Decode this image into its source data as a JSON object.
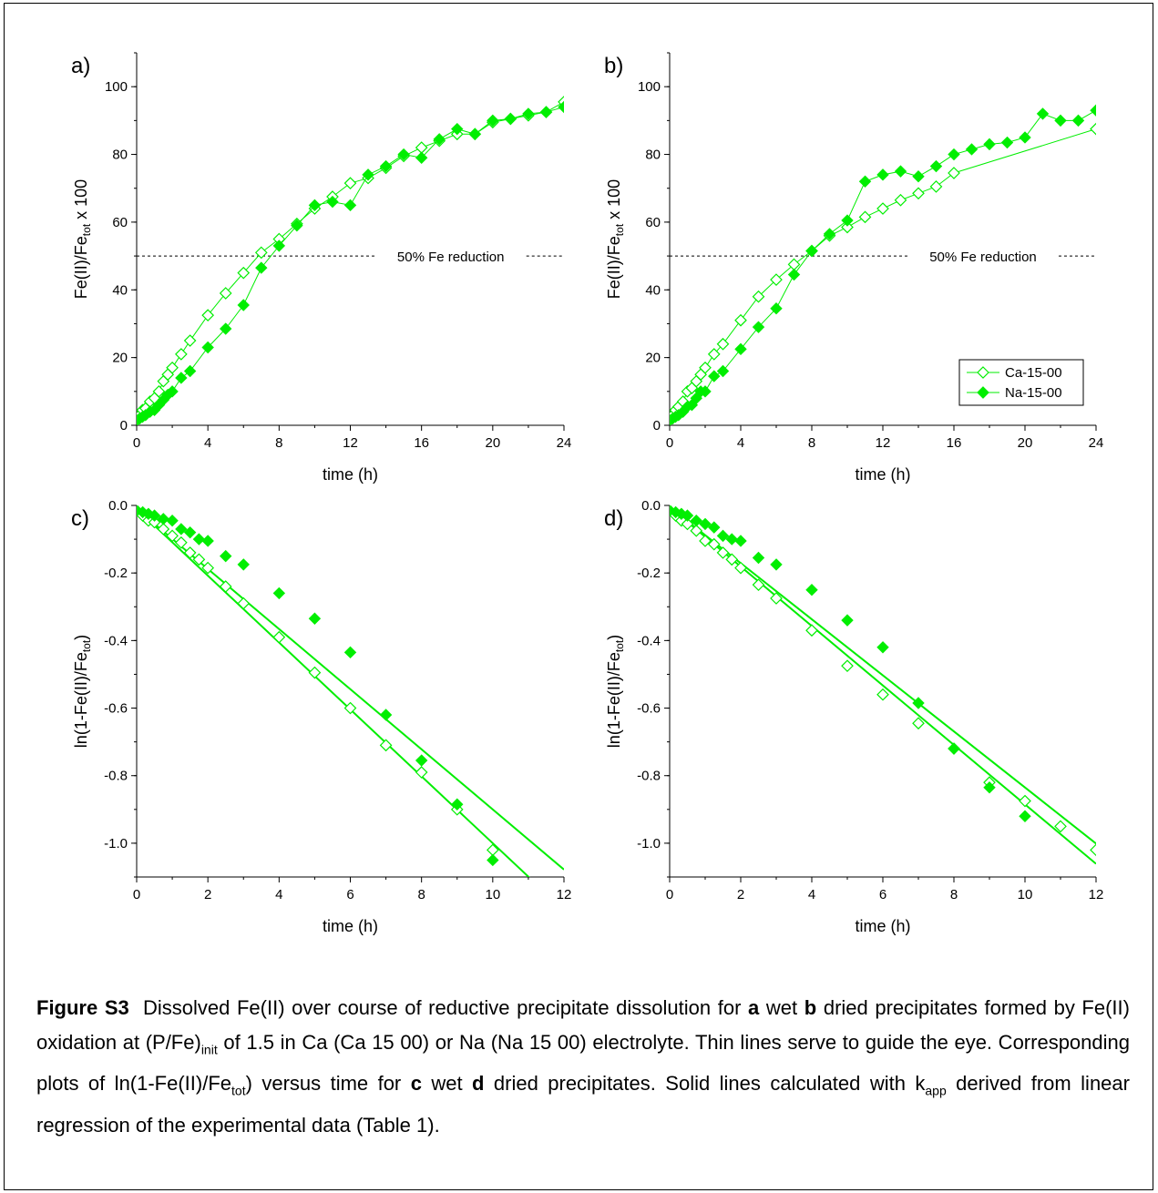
{
  "colors": {
    "series": "#00ee00",
    "axis": "#000000"
  },
  "panels": [
    {
      "label": "a)",
      "type": "line",
      "xlabel": "time (h)",
      "ylabel_html": "Fe(II)/Fe<tspan font-size=\"12\" dy=\"4\">tot</tspan><tspan dy=\"-4\"> x 100</tspan>",
      "xlim": [
        0,
        24
      ],
      "ylim": [
        0,
        110
      ],
      "xticks": [
        0,
        4,
        8,
        12,
        16,
        20,
        24
      ],
      "yticks": [
        0,
        20,
        40,
        60,
        80,
        100
      ],
      "hline": {
        "y": 50,
        "text": "50% Fe reduction"
      },
      "legend": false,
      "series": [
        {
          "name": "Ca-15-00",
          "marker": "open-diamond",
          "x": [
            0,
            0.17,
            0.33,
            0.5,
            0.75,
            1,
            1.25,
            1.5,
            1.75,
            2,
            2.5,
            3,
            4,
            5,
            6,
            7,
            8,
            9,
            10,
            11,
            12,
            13,
            14,
            15,
            16,
            17,
            18,
            19,
            20,
            21,
            22,
            23,
            24
          ],
          "y": [
            1.5,
            3,
            4.5,
            5,
            7,
            8,
            10,
            13,
            15,
            17,
            21,
            25,
            32.5,
            39,
            45,
            51,
            55,
            59.5,
            64,
            67.5,
            71.5,
            73,
            76,
            79.5,
            82,
            84,
            86,
            86,
            89.5,
            90.5,
            91.5,
            92.5,
            95.5
          ]
        },
        {
          "name": "Na-15-00",
          "marker": "filled-diamond",
          "x": [
            0,
            0.17,
            0.33,
            0.5,
            0.75,
            1,
            1.25,
            1.5,
            1.75,
            2,
            2.5,
            3,
            4,
            5,
            6,
            7,
            8,
            9,
            10,
            11,
            12,
            13,
            14,
            15,
            16,
            17,
            18,
            19,
            20,
            21,
            22,
            23,
            24
          ],
          "y": [
            1.5,
            2,
            2.5,
            3,
            4,
            4.5,
            6,
            7.5,
            9,
            10,
            14,
            16,
            23,
            28.5,
            35.5,
            46.5,
            53,
            59,
            65,
            66,
            65,
            74,
            76.5,
            80,
            79,
            84.5,
            87.5,
            86,
            90,
            90.5,
            92,
            92.5,
            94
          ]
        }
      ]
    },
    {
      "label": "b)",
      "type": "line",
      "xlabel": "time (h)",
      "ylabel_html": "Fe(II)/Fe<tspan font-size=\"12\" dy=\"4\">tot</tspan><tspan dy=\"-4\"> x 100</tspan>",
      "xlim": [
        0,
        24
      ],
      "ylim": [
        0,
        110
      ],
      "xticks": [
        0,
        4,
        8,
        12,
        16,
        20,
        24
      ],
      "yticks": [
        0,
        20,
        40,
        60,
        80,
        100
      ],
      "hline": {
        "y": 50,
        "text": "50% Fe reduction"
      },
      "legend": true,
      "series": [
        {
          "name": "Ca-15-00",
          "marker": "open-diamond",
          "x": [
            0,
            0.17,
            0.33,
            0.5,
            0.75,
            1,
            1.25,
            1.5,
            1.75,
            2,
            2.5,
            3,
            4,
            5,
            6,
            7,
            8,
            9,
            10,
            11,
            12,
            13,
            14,
            15,
            16,
            24
          ],
          "y": [
            1.5,
            3,
            4.5,
            5.5,
            7,
            10,
            11,
            13,
            15,
            17,
            21,
            24,
            31,
            38,
            43,
            47.5,
            51.5,
            56,
            58.5,
            61.5,
            64,
            66.5,
            68.5,
            70.5,
            74.5,
            87.5
          ]
        },
        {
          "name": "Na-15-00",
          "marker": "filled-diamond",
          "x": [
            0,
            0.17,
            0.33,
            0.5,
            0.75,
            1,
            1.25,
            1.5,
            1.75,
            2,
            2.5,
            3,
            4,
            5,
            6,
            7,
            8,
            9,
            10,
            11,
            12,
            13,
            14,
            15,
            16,
            17,
            18,
            19,
            20,
            21,
            22,
            23,
            24
          ],
          "y": [
            1.5,
            2,
            2.5,
            3,
            4,
            5.5,
            6,
            8,
            10,
            10,
            14.5,
            16,
            22.5,
            29,
            34.5,
            44.5,
            51.5,
            56.5,
            60.5,
            72,
            74,
            75,
            73.5,
            76.5,
            80,
            81.5,
            83,
            83.5,
            85,
            92,
            90,
            90,
            93
          ]
        }
      ]
    },
    {
      "label": "c)",
      "type": "scatter",
      "xlabel": "time (h)",
      "ylabel_html": "ln(1-Fe(II)/Fe<tspan font-size=\"12\" dy=\"4\">tot</tspan><tspan dy=\"-4\">)</tspan>",
      "xlim": [
        0,
        12
      ],
      "ylim": [
        -1.1,
        0
      ],
      "xticks": [
        0,
        2,
        4,
        6,
        8,
        10,
        12
      ],
      "yticks": [
        0,
        -0.2,
        -0.4,
        -0.6,
        -0.8,
        -1.0
      ],
      "ytick_labels": [
        "0.0",
        "-0.2",
        "-0.4",
        "-0.6",
        "-0.8",
        "-1.0"
      ],
      "legend": false,
      "fits": [
        {
          "slope": -0.099,
          "intercept": -0.01
        },
        {
          "slope": -0.089,
          "intercept": -0.01
        }
      ],
      "series": [
        {
          "name": "Ca-15-00",
          "marker": "open-diamond",
          "x": [
            0,
            0.17,
            0.33,
            0.5,
            0.75,
            1,
            1.25,
            1.5,
            1.75,
            2,
            2.5,
            3,
            4,
            5,
            6,
            7,
            8,
            9,
            10
          ],
          "y": [
            -0.015,
            -0.03,
            -0.045,
            -0.05,
            -0.07,
            -0.09,
            -0.11,
            -0.14,
            -0.16,
            -0.185,
            -0.24,
            -0.29,
            -0.39,
            -0.495,
            -0.6,
            -0.71,
            -0.79,
            -0.9,
            -1.02
          ]
        },
        {
          "name": "Na-15-00",
          "marker": "filled-diamond",
          "x": [
            0,
            0.17,
            0.33,
            0.5,
            0.75,
            1,
            1.25,
            1.5,
            1.75,
            2,
            2.5,
            3,
            4,
            5,
            6,
            7,
            8,
            9,
            10
          ],
          "y": [
            -0.015,
            -0.02,
            -0.025,
            -0.03,
            -0.04,
            -0.045,
            -0.07,
            -0.08,
            -0.1,
            -0.105,
            -0.15,
            -0.175,
            -0.26,
            -0.335,
            -0.435,
            -0.62,
            -0.755,
            -0.885,
            -1.05
          ]
        }
      ]
    },
    {
      "label": "d)",
      "type": "scatter",
      "xlabel": "time (h)",
      "ylabel_html": "ln(1-Fe(II)/Fe<tspan font-size=\"12\" dy=\"4\">tot</tspan><tspan dy=\"-4\">)</tspan>",
      "xlim": [
        0,
        12
      ],
      "ylim": [
        -1.1,
        0
      ],
      "xticks": [
        0,
        2,
        4,
        6,
        8,
        10,
        12
      ],
      "yticks": [
        0,
        -0.2,
        -0.4,
        -0.6,
        -0.8,
        -1.0
      ],
      "ytick_labels": [
        "0.0",
        "-0.2",
        "-0.4",
        "-0.6",
        "-0.8",
        "-1.0"
      ],
      "legend": false,
      "fits": [
        {
          "slope": -0.088,
          "intercept": -0.005
        },
        {
          "slope": -0.083,
          "intercept": -0.005
        }
      ],
      "series": [
        {
          "name": "Ca-15-00",
          "marker": "open-diamond",
          "x": [
            0,
            0.17,
            0.33,
            0.5,
            0.75,
            1,
            1.25,
            1.5,
            1.75,
            2,
            2.5,
            3,
            4,
            5,
            6,
            7,
            8,
            9,
            10,
            11,
            12
          ],
          "y": [
            -0.015,
            -0.03,
            -0.045,
            -0.055,
            -0.075,
            -0.105,
            -0.115,
            -0.14,
            -0.16,
            -0.185,
            -0.235,
            -0.275,
            -0.37,
            -0.475,
            -0.56,
            -0.645,
            -0.72,
            -0.82,
            -0.875,
            -0.95,
            -1.02
          ]
        },
        {
          "name": "Na-15-00",
          "marker": "filled-diamond",
          "x": [
            0,
            0.17,
            0.33,
            0.5,
            0.75,
            1,
            1.25,
            1.5,
            1.75,
            2,
            2.5,
            3,
            4,
            5,
            6,
            7,
            8,
            9,
            10
          ],
          "y": [
            -0.015,
            -0.02,
            -0.025,
            -0.03,
            -0.045,
            -0.055,
            -0.065,
            -0.09,
            -0.1,
            -0.105,
            -0.155,
            -0.175,
            -0.25,
            -0.34,
            -0.42,
            -0.585,
            -0.72,
            -0.835,
            -0.92
          ]
        }
      ]
    }
  ],
  "caption": {
    "label": "Figure S3",
    "html": "Dissolved Fe(II) over course of reductive precipitate dissolution for <b>a</b> wet <b>b</b> dried precipitates formed by Fe(II) oxidation at (P/Fe)<sub style=\"font-size:14px\">init</sub> of 1.5 in Ca (Ca 15 00) or Na (Na 15 00) electrolyte. Thin lines serve to guide the eye. Corresponding plots of ln(1-Fe(II)/Fe<sub style=\"font-size:14px\">tot</sub>) versus time for <b>c</b> wet <b>d</b> dried precipitates. Solid lines calculated with k<sub style=\"font-size:14px\">app</sub> derived from linear regression of the experimental data (Table 1)."
  }
}
